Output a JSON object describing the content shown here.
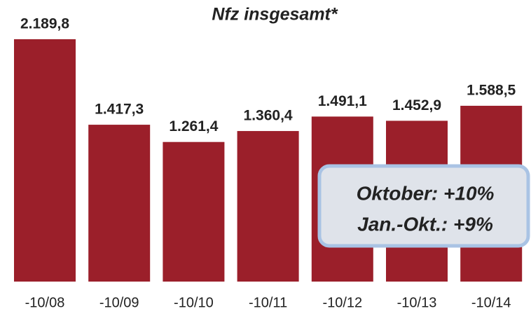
{
  "chart_data": {
    "type": "bar",
    "title": "Nfz insgesamt*",
    "categories": [
      "-10/08",
      "-10/09",
      "-10/10",
      "-10/11",
      "-10/12",
      "-10/13",
      "-10/14"
    ],
    "values": [
      2189.8,
      1417.3,
      1261.4,
      1360.4,
      1491.1,
      1452.9,
      1588.5
    ],
    "value_labels": [
      "2.189,8",
      "1.417,3",
      "1.261,4",
      "1.360,4",
      "1.491,1",
      "1.452,9",
      "1.588,5"
    ],
    "color": "#9b1f2a",
    "annotations": [
      "Oktober: +10%",
      "Jan.-Okt.: +9%"
    ]
  }
}
